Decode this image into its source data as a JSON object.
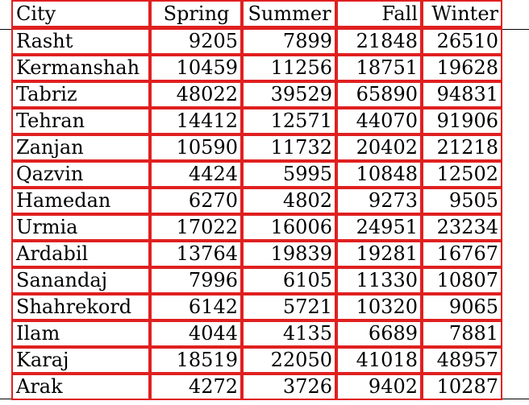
{
  "table": {
    "columns": [
      {
        "label": "City",
        "align": "left"
      },
      {
        "label": "Spring",
        "align": "center"
      },
      {
        "label": "Summer",
        "align": "center"
      },
      {
        "label": "Fall",
        "align": "right"
      },
      {
        "label": "Winter",
        "align": "right"
      }
    ],
    "rows": [
      {
        "city": "Rasht",
        "spring": "9205",
        "summer": "7899",
        "fall": "21848",
        "winter": "26510"
      },
      {
        "city": "Kermanshah",
        "spring": "10459",
        "summer": "11256",
        "fall": "18751",
        "winter": "19628"
      },
      {
        "city": "Tabriz",
        "spring": "48022",
        "summer": "39529",
        "fall": "65890",
        "winter": "94831"
      },
      {
        "city": "Tehran",
        "spring": "14412",
        "summer": "12571",
        "fall": "44070",
        "winter": "91906"
      },
      {
        "city": "Zanjan",
        "spring": "10590",
        "summer": "11732",
        "fall": "20402",
        "winter": "21218"
      },
      {
        "city": "Qazvin",
        "spring": "4424",
        "summer": "5995",
        "fall": "10848",
        "winter": "12502"
      },
      {
        "city": "Hamedan",
        "spring": "6270",
        "summer": "4802",
        "fall": "9273",
        "winter": "9505"
      },
      {
        "city": "Urmia",
        "spring": "17022",
        "summer": "16006",
        "fall": "24951",
        "winter": "23234"
      },
      {
        "city": "Ardabil",
        "spring": "13764",
        "summer": "19839",
        "fall": "19281",
        "winter": "16767"
      },
      {
        "city": "Sanandaj",
        "spring": "7996",
        "summer": "6105",
        "fall": "11330",
        "winter": "10807"
      },
      {
        "city": "Shahrekord",
        "spring": "6142",
        "summer": "5721",
        "fall": "10320",
        "winter": "9065"
      },
      {
        "city": "Ilam",
        "spring": "4044",
        "summer": "4135",
        "fall": "6689",
        "winter": "7881"
      },
      {
        "city": "Karaj",
        "spring": "18519",
        "summer": "22050",
        "fall": "41018",
        "winter": "48957"
      },
      {
        "city": "Arak",
        "spring": "4272",
        "summer": "3726",
        "fall": "9402",
        "winter": "10287"
      }
    ]
  },
  "colors": {
    "cell_border": "#e02020",
    "rule": "#000000",
    "text": "#000000",
    "background": "#ffffff"
  }
}
